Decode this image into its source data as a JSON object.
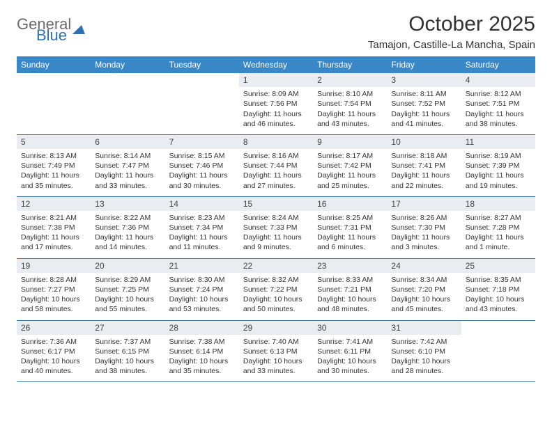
{
  "logo": {
    "general": "General",
    "blue": "Blue"
  },
  "title": "October 2025",
  "location": "Tamajon, Castille-La Mancha, Spain",
  "colors": {
    "header_bg": "#3a87c8",
    "daynum_bg": "#e9edf1",
    "row_border": "#3a74a8",
    "text": "#333333",
    "logo_gray": "#6a6a6a",
    "logo_blue": "#2f6fb3"
  },
  "weekdays": [
    "Sunday",
    "Monday",
    "Tuesday",
    "Wednesday",
    "Thursday",
    "Friday",
    "Saturday"
  ],
  "weeks": [
    [
      null,
      null,
      null,
      {
        "n": "1",
        "sr": "8:09 AM",
        "ss": "7:56 PM",
        "dl": "11 hours and 46 minutes."
      },
      {
        "n": "2",
        "sr": "8:10 AM",
        "ss": "7:54 PM",
        "dl": "11 hours and 43 minutes."
      },
      {
        "n": "3",
        "sr": "8:11 AM",
        "ss": "7:52 PM",
        "dl": "11 hours and 41 minutes."
      },
      {
        "n": "4",
        "sr": "8:12 AM",
        "ss": "7:51 PM",
        "dl": "11 hours and 38 minutes."
      }
    ],
    [
      {
        "n": "5",
        "sr": "8:13 AM",
        "ss": "7:49 PM",
        "dl": "11 hours and 35 minutes."
      },
      {
        "n": "6",
        "sr": "8:14 AM",
        "ss": "7:47 PM",
        "dl": "11 hours and 33 minutes."
      },
      {
        "n": "7",
        "sr": "8:15 AM",
        "ss": "7:46 PM",
        "dl": "11 hours and 30 minutes."
      },
      {
        "n": "8",
        "sr": "8:16 AM",
        "ss": "7:44 PM",
        "dl": "11 hours and 27 minutes."
      },
      {
        "n": "9",
        "sr": "8:17 AM",
        "ss": "7:42 PM",
        "dl": "11 hours and 25 minutes."
      },
      {
        "n": "10",
        "sr": "8:18 AM",
        "ss": "7:41 PM",
        "dl": "11 hours and 22 minutes."
      },
      {
        "n": "11",
        "sr": "8:19 AM",
        "ss": "7:39 PM",
        "dl": "11 hours and 19 minutes."
      }
    ],
    [
      {
        "n": "12",
        "sr": "8:21 AM",
        "ss": "7:38 PM",
        "dl": "11 hours and 17 minutes."
      },
      {
        "n": "13",
        "sr": "8:22 AM",
        "ss": "7:36 PM",
        "dl": "11 hours and 14 minutes."
      },
      {
        "n": "14",
        "sr": "8:23 AM",
        "ss": "7:34 PM",
        "dl": "11 hours and 11 minutes."
      },
      {
        "n": "15",
        "sr": "8:24 AM",
        "ss": "7:33 PM",
        "dl": "11 hours and 9 minutes."
      },
      {
        "n": "16",
        "sr": "8:25 AM",
        "ss": "7:31 PM",
        "dl": "11 hours and 6 minutes."
      },
      {
        "n": "17",
        "sr": "8:26 AM",
        "ss": "7:30 PM",
        "dl": "11 hours and 3 minutes."
      },
      {
        "n": "18",
        "sr": "8:27 AM",
        "ss": "7:28 PM",
        "dl": "11 hours and 1 minute."
      }
    ],
    [
      {
        "n": "19",
        "sr": "8:28 AM",
        "ss": "7:27 PM",
        "dl": "10 hours and 58 minutes."
      },
      {
        "n": "20",
        "sr": "8:29 AM",
        "ss": "7:25 PM",
        "dl": "10 hours and 55 minutes."
      },
      {
        "n": "21",
        "sr": "8:30 AM",
        "ss": "7:24 PM",
        "dl": "10 hours and 53 minutes."
      },
      {
        "n": "22",
        "sr": "8:32 AM",
        "ss": "7:22 PM",
        "dl": "10 hours and 50 minutes."
      },
      {
        "n": "23",
        "sr": "8:33 AM",
        "ss": "7:21 PM",
        "dl": "10 hours and 48 minutes."
      },
      {
        "n": "24",
        "sr": "8:34 AM",
        "ss": "7:20 PM",
        "dl": "10 hours and 45 minutes."
      },
      {
        "n": "25",
        "sr": "8:35 AM",
        "ss": "7:18 PM",
        "dl": "10 hours and 43 minutes."
      }
    ],
    [
      {
        "n": "26",
        "sr": "7:36 AM",
        "ss": "6:17 PM",
        "dl": "10 hours and 40 minutes."
      },
      {
        "n": "27",
        "sr": "7:37 AM",
        "ss": "6:15 PM",
        "dl": "10 hours and 38 minutes."
      },
      {
        "n": "28",
        "sr": "7:38 AM",
        "ss": "6:14 PM",
        "dl": "10 hours and 35 minutes."
      },
      {
        "n": "29",
        "sr": "7:40 AM",
        "ss": "6:13 PM",
        "dl": "10 hours and 33 minutes."
      },
      {
        "n": "30",
        "sr": "7:41 AM",
        "ss": "6:11 PM",
        "dl": "10 hours and 30 minutes."
      },
      {
        "n": "31",
        "sr": "7:42 AM",
        "ss": "6:10 PM",
        "dl": "10 hours and 28 minutes."
      },
      null
    ]
  ],
  "labels": {
    "sunrise": "Sunrise:",
    "sunset": "Sunset:",
    "daylight": "Daylight:"
  }
}
